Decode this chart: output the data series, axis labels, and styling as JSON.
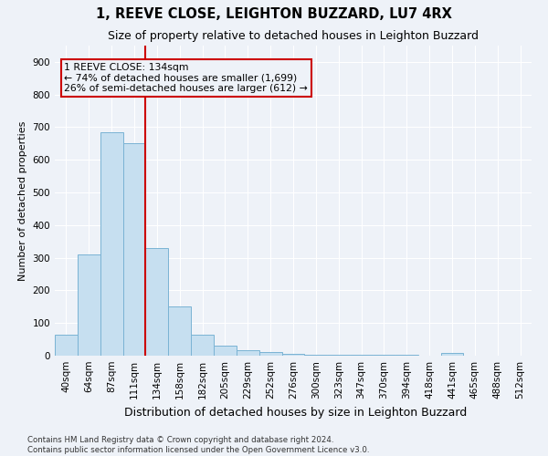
{
  "title": "1, REEVE CLOSE, LEIGHTON BUZZARD, LU7 4RX",
  "subtitle": "Size of property relative to detached houses in Leighton Buzzard",
  "xlabel": "Distribution of detached houses by size in Leighton Buzzard",
  "ylabel": "Number of detached properties",
  "categories": [
    "40sqm",
    "64sqm",
    "87sqm",
    "111sqm",
    "134sqm",
    "158sqm",
    "182sqm",
    "205sqm",
    "229sqm",
    "252sqm",
    "276sqm",
    "300sqm",
    "323sqm",
    "347sqm",
    "370sqm",
    "394sqm",
    "418sqm",
    "441sqm",
    "465sqm",
    "488sqm",
    "512sqm"
  ],
  "values": [
    65,
    310,
    685,
    650,
    330,
    150,
    65,
    30,
    18,
    10,
    5,
    2,
    2,
    2,
    2,
    2,
    0,
    8,
    0,
    0,
    0
  ],
  "bar_color": "#c6dff0",
  "bar_edge_color": "#7ab3d4",
  "vline_x": 3.5,
  "vline_color": "#cc0000",
  "ylim": [
    0,
    950
  ],
  "yticks": [
    0,
    100,
    200,
    300,
    400,
    500,
    600,
    700,
    800,
    900
  ],
  "annotation_text": "1 REEVE CLOSE: 134sqm\n← 74% of detached houses are smaller (1,699)\n26% of semi-detached houses are larger (612) →",
  "annotation_box_color": "#cc0000",
  "footer_text": "Contains HM Land Registry data © Crown copyright and database right 2024.\nContains public sector information licensed under the Open Government Licence v3.0.",
  "background_color": "#eef2f8",
  "grid_color": "#ffffff",
  "title_fontsize": 10.5,
  "subtitle_fontsize": 9,
  "xlabel_fontsize": 9,
  "ylabel_fontsize": 8,
  "tick_fontsize": 7.5,
  "annotation_fontsize": 7.8,
  "footer_fontsize": 6.2
}
